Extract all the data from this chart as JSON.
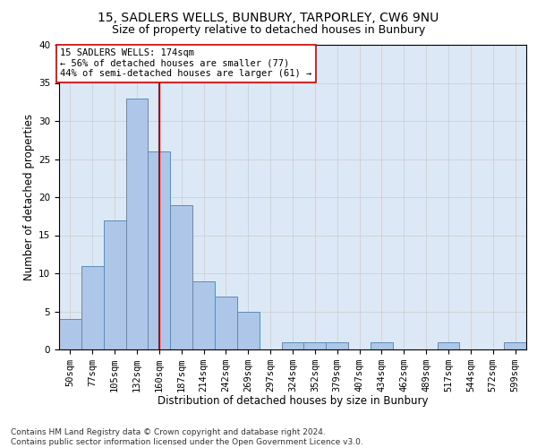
{
  "title1": "15, SADLERS WELLS, BUNBURY, TARPORLEY, CW6 9NU",
  "title2": "Size of property relative to detached houses in Bunbury",
  "xlabel": "Distribution of detached houses by size in Bunbury",
  "ylabel": "Number of detached properties",
  "bar_values": [
    4,
    11,
    17,
    33,
    26,
    19,
    9,
    7,
    5,
    0,
    1,
    1,
    1,
    0,
    1,
    0,
    0,
    1,
    0,
    0,
    1
  ],
  "bin_labels": [
    "50sqm",
    "77sqm",
    "105sqm",
    "132sqm",
    "160sqm",
    "187sqm",
    "214sqm",
    "242sqm",
    "269sqm",
    "297sqm",
    "324sqm",
    "352sqm",
    "379sqm",
    "407sqm",
    "434sqm",
    "462sqm",
    "489sqm",
    "517sqm",
    "544sqm",
    "572sqm",
    "599sqm"
  ],
  "bar_color": "#AEC6E8",
  "bar_edge_color": "#5B8DB8",
  "bar_width": 1.0,
  "property_bin_index": 4,
  "vline_color": "#CC0000",
  "annotation_text": "15 SADLERS WELLS: 174sqm\n← 56% of detached houses are smaller (77)\n44% of semi-detached houses are larger (61) →",
  "annotation_box_color": "#ffffff",
  "annotation_box_edge_color": "#CC0000",
  "ylim": [
    0,
    40
  ],
  "yticks": [
    0,
    5,
    10,
    15,
    20,
    25,
    30,
    35,
    40
  ],
  "grid_color": "#cccccc",
  "background_color": "#dce8f5",
  "footer_text": "Contains HM Land Registry data © Crown copyright and database right 2024.\nContains public sector information licensed under the Open Government Licence v3.0.",
  "title1_fontsize": 10,
  "title2_fontsize": 9,
  "xlabel_fontsize": 8.5,
  "ylabel_fontsize": 8.5,
  "tick_fontsize": 7.5,
  "annotation_fontsize": 7.5,
  "footer_fontsize": 6.5
}
